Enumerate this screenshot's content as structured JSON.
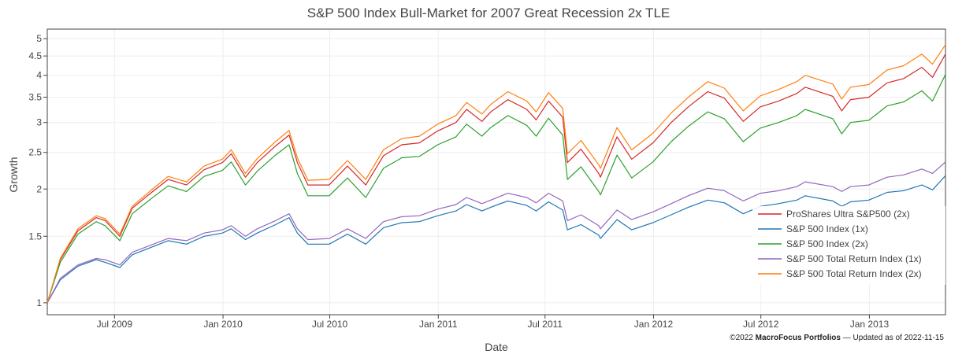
{
  "chart_data": {
    "type": "line",
    "title": "S&P 500 Index Bull-Market for 2007 Great Recession 2x TLE",
    "xlabel": "Date",
    "ylabel": "Growth",
    "scale_y": "log",
    "ylim": [
      0.93,
      5.3
    ],
    "xlim": [
      "2009-03-09",
      "2013-05-10"
    ],
    "x_ticks": [
      {
        "date": "2009-07-01",
        "label": "Jul 2009"
      },
      {
        "date": "2010-01-01",
        "label": "Jan 2010"
      },
      {
        "date": "2010-07-01",
        "label": "Jul 2010"
      },
      {
        "date": "2011-01-01",
        "label": "Jan 2011"
      },
      {
        "date": "2011-07-01",
        "label": "Jul 2011"
      },
      {
        "date": "2012-01-01",
        "label": "Jan 2012"
      },
      {
        "date": "2012-07-01",
        "label": "Jul 2012"
      },
      {
        "date": "2013-01-01",
        "label": "Jan 2013"
      }
    ],
    "y_ticks": [
      {
        "value": 1,
        "label": "1"
      },
      {
        "value": 1.5,
        "label": "1.5"
      },
      {
        "value": 2,
        "label": "2"
      },
      {
        "value": 2.5,
        "label": "2.5"
      },
      {
        "value": 3,
        "label": "3"
      },
      {
        "value": 3.5,
        "label": "3.5"
      },
      {
        "value": 4,
        "label": "4"
      },
      {
        "value": 4.5,
        "label": "4.5"
      },
      {
        "value": 5,
        "label": "5"
      }
    ],
    "grid": true,
    "legend_position": "bottom-right",
    "x": [
      "2009-03-09",
      "2009-03-31",
      "2009-04-30",
      "2009-05-31",
      "2009-06-15",
      "2009-07-10",
      "2009-07-31",
      "2009-08-31",
      "2009-09-30",
      "2009-10-31",
      "2009-11-30",
      "2009-12-31",
      "2010-01-15",
      "2010-02-08",
      "2010-02-28",
      "2010-03-31",
      "2010-04-23",
      "2010-05-07",
      "2010-05-25",
      "2010-06-30",
      "2010-07-31",
      "2010-08-31",
      "2010-09-30",
      "2010-10-31",
      "2010-11-30",
      "2010-12-31",
      "2011-01-31",
      "2011-02-18",
      "2011-03-16",
      "2011-03-31",
      "2011-04-29",
      "2011-05-31",
      "2011-06-16",
      "2011-07-07",
      "2011-07-31",
      "2011-08-08",
      "2011-08-31",
      "2011-09-30",
      "2011-10-03",
      "2011-10-31",
      "2011-11-25",
      "2011-12-31",
      "2012-01-31",
      "2012-02-29",
      "2012-04-02",
      "2012-04-30",
      "2012-06-01",
      "2012-06-30",
      "2012-07-31",
      "2012-08-31",
      "2012-09-14",
      "2012-10-31",
      "2012-11-15",
      "2012-11-30",
      "2012-12-31",
      "2013-01-31",
      "2013-02-28",
      "2013-03-31",
      "2013-04-18",
      "2013-05-10"
    ],
    "series": [
      {
        "name": "ProShares Ultra S&P500 (2x)",
        "color": "#d62728",
        "values": [
          1.0,
          1.3,
          1.55,
          1.68,
          1.65,
          1.5,
          1.78,
          1.95,
          2.12,
          2.05,
          2.25,
          2.35,
          2.48,
          2.15,
          2.35,
          2.6,
          2.78,
          2.35,
          2.05,
          2.05,
          2.3,
          2.05,
          2.45,
          2.62,
          2.65,
          2.85,
          3.0,
          3.25,
          3.02,
          3.2,
          3.45,
          3.25,
          3.05,
          3.42,
          3.1,
          2.35,
          2.55,
          2.2,
          2.15,
          2.75,
          2.4,
          2.65,
          3.0,
          3.3,
          3.62,
          3.48,
          3.02,
          3.3,
          3.42,
          3.58,
          3.72,
          3.52,
          3.22,
          3.45,
          3.5,
          3.82,
          3.92,
          4.2,
          3.95,
          4.55
        ]
      },
      {
        "name": "S&P 500 Index (1x)",
        "color": "#1f77b4",
        "values": [
          1.0,
          1.15,
          1.25,
          1.3,
          1.28,
          1.24,
          1.34,
          1.4,
          1.46,
          1.43,
          1.5,
          1.53,
          1.57,
          1.47,
          1.53,
          1.61,
          1.68,
          1.53,
          1.43,
          1.43,
          1.52,
          1.43,
          1.58,
          1.63,
          1.64,
          1.7,
          1.75,
          1.82,
          1.75,
          1.79,
          1.86,
          1.81,
          1.75,
          1.85,
          1.76,
          1.56,
          1.61,
          1.51,
          1.48,
          1.66,
          1.56,
          1.63,
          1.71,
          1.79,
          1.87,
          1.84,
          1.72,
          1.8,
          1.83,
          1.87,
          1.92,
          1.86,
          1.8,
          1.85,
          1.87,
          1.96,
          1.98,
          2.05,
          1.99,
          2.17
        ]
      },
      {
        "name": "S&P 500 Index (2x)",
        "color": "#2ca02c",
        "values": [
          1.0,
          1.28,
          1.52,
          1.64,
          1.6,
          1.46,
          1.72,
          1.88,
          2.04,
          1.97,
          2.16,
          2.24,
          2.36,
          2.05,
          2.23,
          2.46,
          2.62,
          2.2,
          1.92,
          1.92,
          2.14,
          1.9,
          2.27,
          2.42,
          2.44,
          2.62,
          2.75,
          2.97,
          2.76,
          2.91,
          3.13,
          2.95,
          2.76,
          3.08,
          2.78,
          2.12,
          2.29,
          1.97,
          1.93,
          2.46,
          2.14,
          2.36,
          2.67,
          2.93,
          3.2,
          3.07,
          2.67,
          2.9,
          3.0,
          3.13,
          3.25,
          3.07,
          2.8,
          3.0,
          3.04,
          3.32,
          3.4,
          3.64,
          3.42,
          4.02
        ]
      },
      {
        "name": "S&P 500 Total Return Index (1x)",
        "color": "#9467bd",
        "values": [
          1.0,
          1.16,
          1.26,
          1.31,
          1.3,
          1.26,
          1.36,
          1.42,
          1.48,
          1.46,
          1.53,
          1.56,
          1.6,
          1.5,
          1.57,
          1.65,
          1.72,
          1.57,
          1.47,
          1.48,
          1.57,
          1.48,
          1.64,
          1.69,
          1.7,
          1.77,
          1.82,
          1.9,
          1.83,
          1.87,
          1.95,
          1.9,
          1.84,
          1.95,
          1.86,
          1.65,
          1.71,
          1.6,
          1.57,
          1.76,
          1.66,
          1.74,
          1.83,
          1.92,
          2.01,
          1.98,
          1.86,
          1.95,
          1.98,
          2.03,
          2.09,
          2.03,
          1.97,
          2.03,
          2.05,
          2.15,
          2.18,
          2.26,
          2.2,
          2.36
        ]
      },
      {
        "name": "S&P 500 Total Return Index (2x)",
        "color": "#ff7f0e",
        "values": [
          1.0,
          1.31,
          1.57,
          1.7,
          1.67,
          1.52,
          1.8,
          1.98,
          2.16,
          2.09,
          2.3,
          2.4,
          2.54,
          2.2,
          2.41,
          2.67,
          2.86,
          2.42,
          2.11,
          2.12,
          2.38,
          2.12,
          2.54,
          2.72,
          2.76,
          2.97,
          3.13,
          3.39,
          3.16,
          3.35,
          3.62,
          3.42,
          3.2,
          3.6,
          3.27,
          2.48,
          2.69,
          2.32,
          2.27,
          2.91,
          2.54,
          2.81,
          3.18,
          3.5,
          3.85,
          3.7,
          3.22,
          3.53,
          3.67,
          3.85,
          4.0,
          3.79,
          3.46,
          3.72,
          3.78,
          4.13,
          4.24,
          4.55,
          4.28,
          4.82
        ]
      }
    ]
  },
  "credit": {
    "prefix": "©2022 ",
    "brand": "MacroFocus Portfolios",
    "suffix": " — Updated as of 2022-11-15"
  }
}
